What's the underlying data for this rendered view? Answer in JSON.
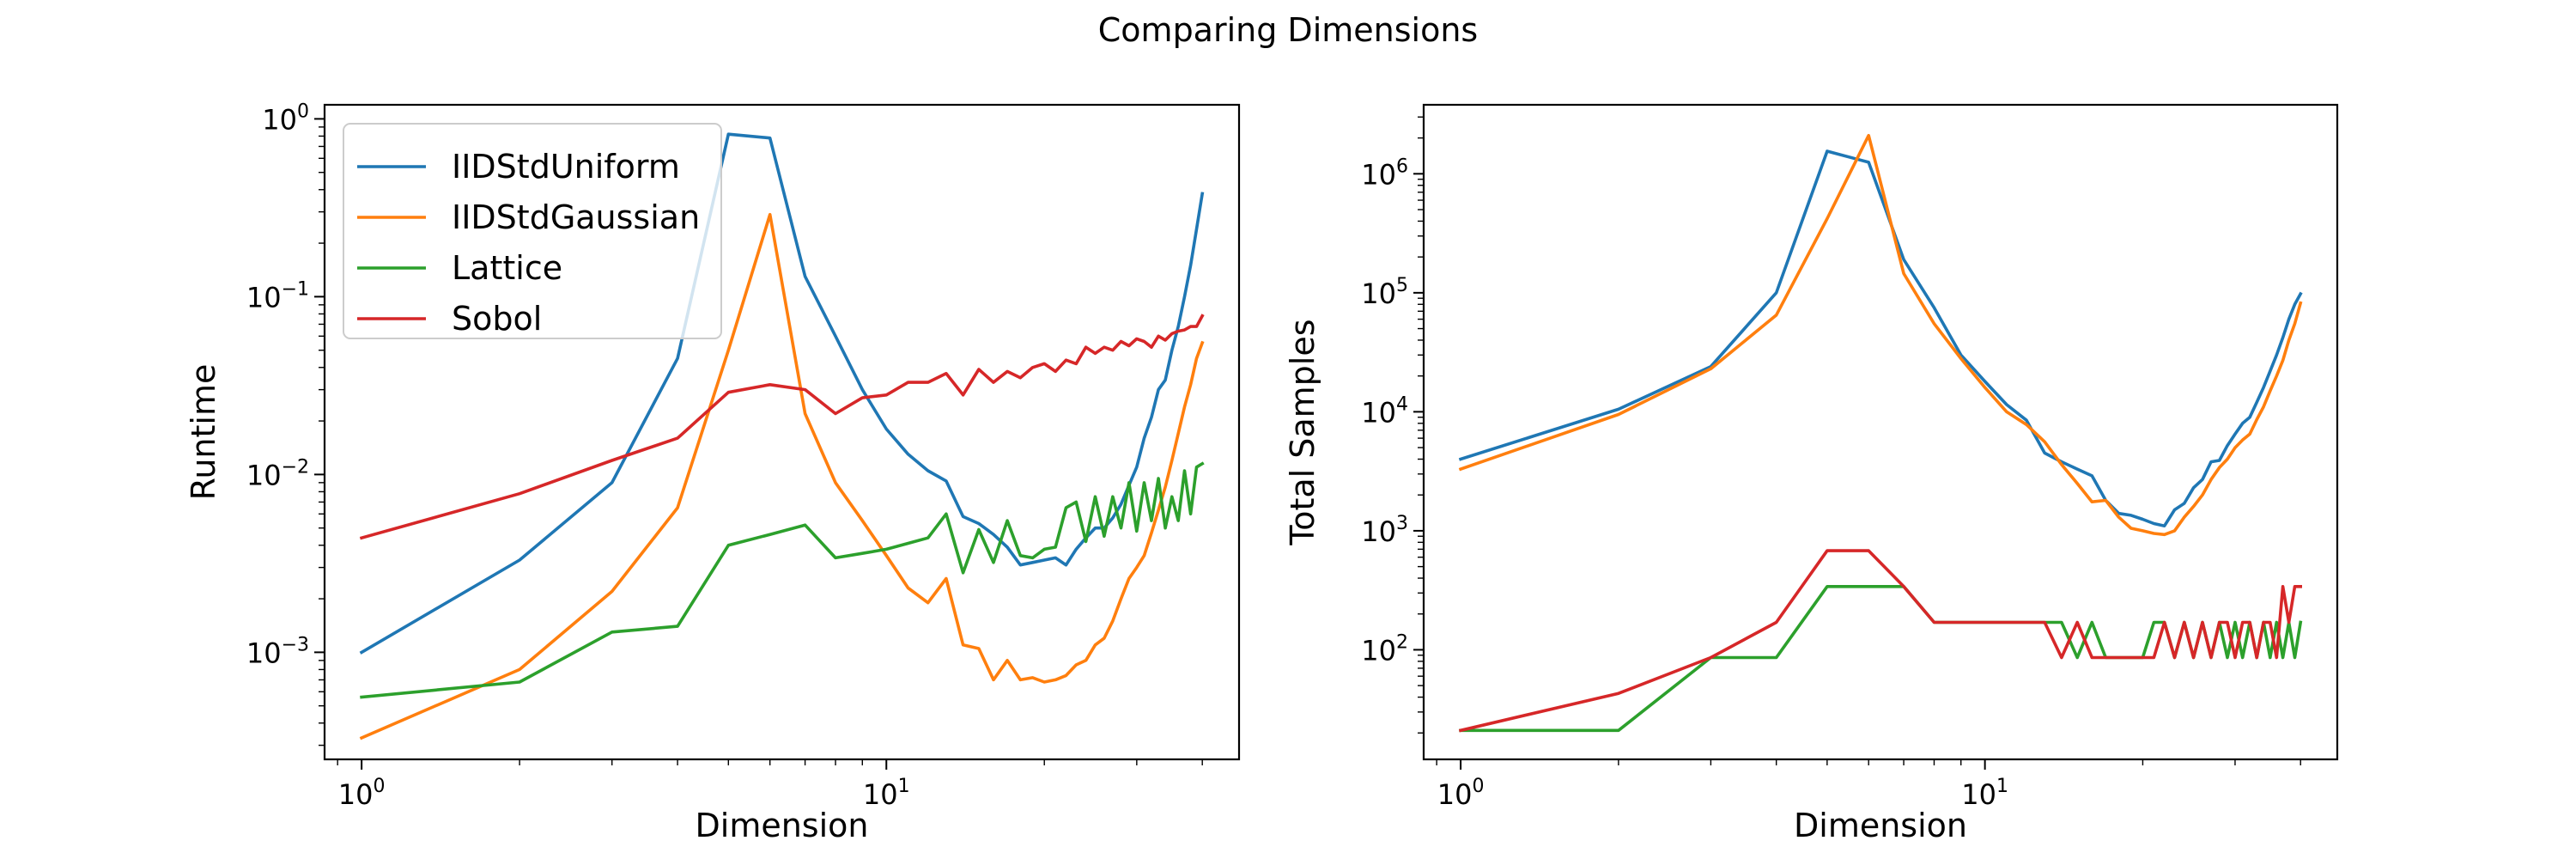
{
  "figure_title": "Comparing Dimensions",
  "colors": {
    "IIDStdUniform": "#1f77b4",
    "IIDStdGaussian": "#ff7f0e",
    "Lattice": "#2ca02c",
    "Sobol": "#d62728"
  },
  "chart_data": [
    {
      "type": "line",
      "xlabel": "Dimension",
      "ylabel": "Runtime",
      "xscale": "log",
      "yscale": "log",
      "xlim": [
        0.85,
        47
      ],
      "ylim": [
        0.00025,
        1.2
      ],
      "xticks": [
        {
          "v": 1,
          "label": "10^0"
        },
        {
          "v": 10,
          "label": "10^1"
        }
      ],
      "yticks": [
        {
          "v": 0.001,
          "label": "10^-3"
        },
        {
          "v": 0.01,
          "label": "10^-2"
        },
        {
          "v": 0.1,
          "label": "10^-1"
        },
        {
          "v": 1,
          "label": "10^0"
        }
      ],
      "grid": false,
      "legend": {
        "position": "upper-left",
        "entries": [
          "IIDStdUniform",
          "IIDStdGaussian",
          "Lattice",
          "Sobol"
        ]
      },
      "series": [
        {
          "name": "IIDStdUniform",
          "x": [
            1,
            2,
            3,
            4,
            5,
            6,
            7,
            8,
            9,
            10,
            11,
            12,
            13,
            14,
            15,
            16,
            17,
            18,
            19,
            20,
            21,
            22,
            23,
            24,
            25,
            26,
            27,
            28,
            29,
            30,
            31,
            32,
            33,
            34,
            35,
            36,
            37,
            38,
            39,
            40
          ],
          "y": [
            0.001,
            0.0033,
            0.009,
            0.045,
            0.82,
            0.78,
            0.13,
            0.06,
            0.03,
            0.018,
            0.013,
            0.0105,
            0.0092,
            0.0058,
            0.0053,
            0.0046,
            0.0039,
            0.0031,
            0.0032,
            0.0033,
            0.0034,
            0.0031,
            0.0038,
            0.0044,
            0.005,
            0.005,
            0.0057,
            0.0068,
            0.0087,
            0.011,
            0.016,
            0.021,
            0.03,
            0.034,
            0.05,
            0.068,
            0.1,
            0.15,
            0.24,
            0.38
          ]
        },
        {
          "name": "IIDStdGaussian",
          "x": [
            1,
            2,
            3,
            4,
            5,
            6,
            7,
            8,
            9,
            10,
            11,
            12,
            13,
            14,
            15,
            16,
            17,
            18,
            19,
            20,
            21,
            22,
            23,
            24,
            25,
            26,
            27,
            28,
            29,
            30,
            31,
            32,
            33,
            34,
            35,
            36,
            37,
            38,
            39,
            40
          ],
          "y": [
            0.00033,
            0.0008,
            0.0022,
            0.0065,
            0.05,
            0.29,
            0.022,
            0.009,
            0.0055,
            0.0035,
            0.0023,
            0.0019,
            0.0026,
            0.0011,
            0.00105,
            0.0007,
            0.0009,
            0.0007,
            0.00072,
            0.00068,
            0.0007,
            0.00074,
            0.00085,
            0.0009,
            0.0011,
            0.0012,
            0.0015,
            0.002,
            0.0026,
            0.003,
            0.0035,
            0.0047,
            0.0063,
            0.0085,
            0.012,
            0.017,
            0.024,
            0.032,
            0.045,
            0.055
          ]
        },
        {
          "name": "Lattice",
          "x": [
            1,
            2,
            3,
            4,
            5,
            6,
            7,
            8,
            9,
            10,
            11,
            12,
            13,
            14,
            15,
            16,
            17,
            18,
            19,
            20,
            21,
            22,
            23,
            24,
            25,
            26,
            27,
            28,
            29,
            30,
            31,
            32,
            33,
            34,
            35,
            36,
            37,
            38,
            39,
            40
          ],
          "y": [
            0.00056,
            0.00068,
            0.0013,
            0.0014,
            0.004,
            0.0046,
            0.0052,
            0.0034,
            0.0036,
            0.0038,
            0.0041,
            0.0044,
            0.006,
            0.0028,
            0.0049,
            0.0032,
            0.0055,
            0.0035,
            0.0034,
            0.0038,
            0.0039,
            0.0065,
            0.007,
            0.0042,
            0.0075,
            0.0045,
            0.0075,
            0.005,
            0.009,
            0.0048,
            0.009,
            0.0055,
            0.0095,
            0.005,
            0.0075,
            0.0055,
            0.0105,
            0.006,
            0.011,
            0.0115
          ]
        },
        {
          "name": "Sobol",
          "x": [
            1,
            2,
            3,
            4,
            5,
            6,
            7,
            8,
            9,
            10,
            11,
            12,
            13,
            14,
            15,
            16,
            17,
            18,
            19,
            20,
            21,
            22,
            23,
            24,
            25,
            26,
            27,
            28,
            29,
            30,
            31,
            32,
            33,
            34,
            35,
            36,
            37,
            38,
            39,
            40
          ],
          "y": [
            0.0044,
            0.0078,
            0.012,
            0.016,
            0.029,
            0.032,
            0.03,
            0.022,
            0.027,
            0.028,
            0.033,
            0.033,
            0.037,
            0.028,
            0.039,
            0.033,
            0.038,
            0.035,
            0.04,
            0.042,
            0.038,
            0.044,
            0.042,
            0.052,
            0.048,
            0.052,
            0.05,
            0.056,
            0.053,
            0.058,
            0.056,
            0.052,
            0.06,
            0.057,
            0.062,
            0.064,
            0.065,
            0.068,
            0.068,
            0.078
          ]
        }
      ]
    },
    {
      "type": "line",
      "xlabel": "Dimension",
      "ylabel": "Total Samples",
      "xscale": "log",
      "yscale": "log",
      "xlim": [
        0.85,
        47
      ],
      "ylim": [
        12,
        3800000
      ],
      "xticks": [
        {
          "v": 1,
          "label": "10^0"
        },
        {
          "v": 10,
          "label": "10^1"
        }
      ],
      "yticks": [
        {
          "v": 100,
          "label": "10^2"
        },
        {
          "v": 1000,
          "label": "10^3"
        },
        {
          "v": 10000,
          "label": "10^4"
        },
        {
          "v": 100000,
          "label": "10^5"
        },
        {
          "v": 1000000,
          "label": "10^6"
        }
      ],
      "grid": false,
      "series": [
        {
          "name": "IIDStdUniform",
          "x": [
            1,
            2,
            3,
            4,
            5,
            6,
            7,
            8,
            9,
            10,
            11,
            12,
            13,
            14,
            15,
            16,
            17,
            18,
            19,
            20,
            21,
            22,
            23,
            24,
            25,
            26,
            27,
            28,
            29,
            30,
            31,
            32,
            33,
            34,
            35,
            36,
            37,
            38,
            39,
            40
          ],
          "y": [
            4000,
            10500,
            24000,
            100000,
            1550000,
            1250000,
            190000,
            75000,
            30000,
            18000,
            11500,
            8500,
            4500,
            3800,
            3300,
            2900,
            1800,
            1400,
            1350,
            1250,
            1150,
            1100,
            1500,
            1700,
            2300,
            2700,
            3800,
            3900,
            5200,
            6500,
            8000,
            9000,
            12000,
            16000,
            22000,
            30000,
            42000,
            60000,
            80000,
            98000
          ]
        },
        {
          "name": "IIDStdGaussian",
          "x": [
            1,
            2,
            3,
            4,
            5,
            6,
            7,
            8,
            9,
            10,
            11,
            12,
            13,
            14,
            15,
            16,
            17,
            18,
            19,
            20,
            21,
            22,
            23,
            24,
            25,
            26,
            27,
            28,
            29,
            30,
            31,
            32,
            33,
            34,
            35,
            36,
            37,
            38,
            39,
            40
          ],
          "y": [
            3300,
            9500,
            23000,
            65000,
            420000,
            2100000,
            145000,
            55000,
            28000,
            16000,
            10000,
            7800,
            5600,
            3600,
            2500,
            1750,
            1800,
            1300,
            1050,
            1000,
            950,
            930,
            1000,
            1300,
            1600,
            2000,
            2700,
            3400,
            4000,
            5000,
            5800,
            6500,
            8600,
            11000,
            15000,
            20000,
            27000,
            40000,
            55000,
            82000
          ]
        },
        {
          "name": "Lattice",
          "x": [
            1,
            2,
            3,
            4,
            5,
            6,
            7,
            8,
            9,
            10,
            11,
            12,
            13,
            14,
            15,
            16,
            17,
            18,
            19,
            20,
            21,
            22,
            23,
            24,
            25,
            26,
            27,
            28,
            29,
            30,
            31,
            32,
            33,
            34,
            35,
            36,
            37,
            38,
            39,
            40
          ],
          "y": [
            21,
            21,
            86,
            86,
            340,
            340,
            340,
            170,
            170,
            170,
            170,
            170,
            170,
            170,
            86,
            170,
            86,
            86,
            86,
            86,
            170,
            170,
            86,
            170,
            86,
            170,
            86,
            170,
            86,
            170,
            86,
            170,
            86,
            170,
            86,
            170,
            86,
            170,
            86,
            170
          ]
        },
        {
          "name": "Sobol",
          "x": [
            1,
            2,
            3,
            4,
            5,
            6,
            7,
            8,
            9,
            10,
            11,
            12,
            13,
            14,
            15,
            16,
            17,
            18,
            19,
            20,
            21,
            22,
            23,
            24,
            25,
            26,
            27,
            28,
            29,
            30,
            31,
            32,
            33,
            34,
            35,
            36,
            37,
            38,
            39,
            40
          ],
          "y": [
            21,
            43,
            86,
            170,
            680,
            680,
            340,
            170,
            170,
            170,
            170,
            170,
            170,
            86,
            170,
            86,
            86,
            86,
            86,
            86,
            86,
            170,
            86,
            170,
            86,
            170,
            86,
            170,
            170,
            86,
            170,
            170,
            86,
            170,
            170,
            86,
            340,
            170,
            340,
            340
          ]
        }
      ]
    }
  ]
}
